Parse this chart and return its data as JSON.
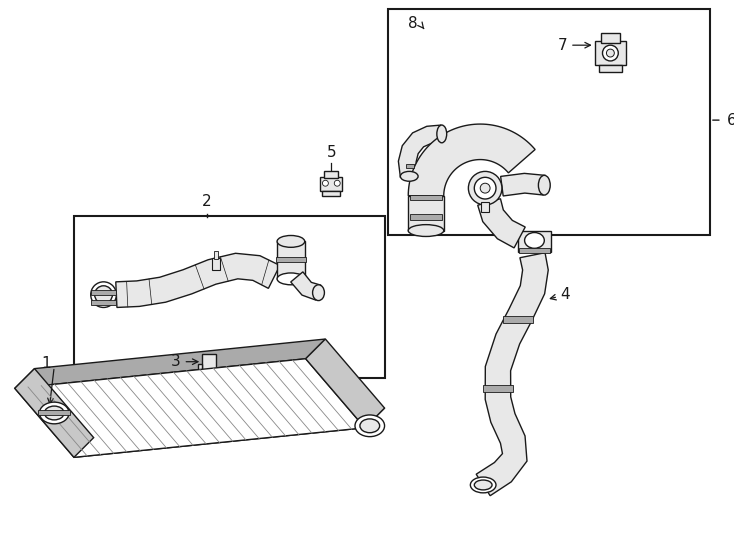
{
  "background_color": "#ffffff",
  "line_color": "#1a1a1a",
  "part_color": "#e8e8e8",
  "dark_color": "#aaaaaa",
  "label_fontsize": 10,
  "fig_width": 7.34,
  "fig_height": 5.4,
  "dpi": 100
}
